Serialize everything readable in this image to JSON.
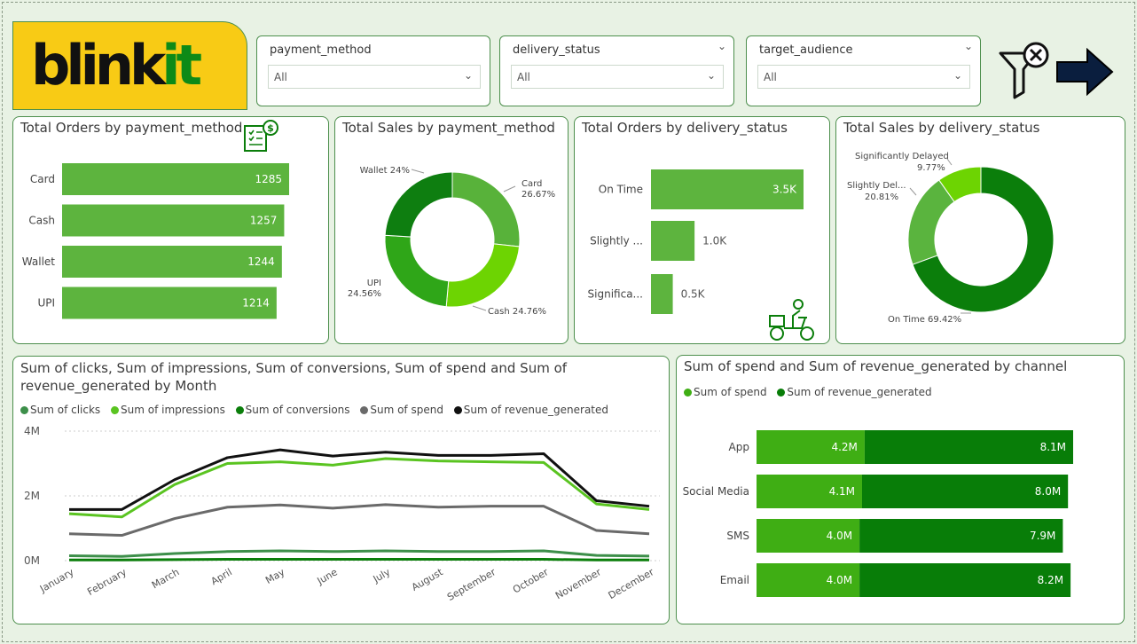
{
  "brand": {
    "logo_main": "blink",
    "logo_accent": "it"
  },
  "slicers": [
    {
      "label": "payment_method",
      "value": "All",
      "has_header_chevron": false
    },
    {
      "label": "delivery_status",
      "value": "All",
      "has_header_chevron": true
    },
    {
      "label": "target_audience",
      "value": "All",
      "has_header_chevron": true
    }
  ],
  "colors": {
    "green1": "#5db43e",
    "green2": "#0b7e0b",
    "green3": "#6dd402",
    "green4": "#2fa618",
    "grey": "#646464",
    "black": "#111111",
    "cash": "#6dd402",
    "card": "#58b23a"
  },
  "icons": {
    "clear_filters": "filter-clear-icon",
    "next_page": "arrow-right-icon",
    "invoice": "invoice-dollar-icon",
    "delivery": "delivery-scooter-icon"
  },
  "chart_data": [
    {
      "type": "bar",
      "title": "Total Orders by payment_method",
      "categories": [
        "Card",
        "Cash",
        "Wallet",
        "UPI"
      ],
      "values": [
        1285,
        1257,
        1244,
        1214
      ],
      "labels": [
        "1285",
        "1257",
        "1244",
        "1214"
      ]
    },
    {
      "type": "pie",
      "title": "Total Sales by payment_method",
      "categories": [
        "Card",
        "Cash",
        "UPI",
        "Wallet"
      ],
      "values": [
        26.67,
        24.76,
        24.56,
        24.0
      ],
      "labels": [
        "Card\n26.67%",
        "Cash 24.76%",
        "UPI\n24.56%",
        "Wallet 24%"
      ]
    },
    {
      "type": "bar",
      "title": "Total Orders by delivery_status",
      "categories": [
        "On Time",
        "Slightly ...",
        "Significa..."
      ],
      "values": [
        3.5,
        1.0,
        0.5
      ],
      "labels": [
        "3.5K",
        "1.0K",
        "0.5K"
      ]
    },
    {
      "type": "pie",
      "title": "Total Sales by delivery_status",
      "categories": [
        "On Time",
        "Slightly Del...",
        "Significantly Delayed"
      ],
      "values": [
        69.42,
        20.81,
        9.77
      ],
      "labels": [
        "On Time 69.42%",
        "20.81%",
        "9.77%"
      ]
    },
    {
      "type": "line",
      "title": "Sum of clicks, Sum of impressions, Sum of conversions, Sum of spend and Sum of revenue_generated by Month",
      "x": [
        "January",
        "February",
        "March",
        "April",
        "May",
        "June",
        "July",
        "August",
        "September",
        "October",
        "November",
        "December"
      ],
      "yticks": [
        "4M",
        "2M",
        "0M"
      ],
      "ylim": [
        0,
        4
      ],
      "series": [
        {
          "name": "Sum of clicks",
          "values": [
            0.15,
            0.13,
            0.22,
            0.28,
            0.3,
            0.28,
            0.3,
            0.28,
            0.28,
            0.3,
            0.16,
            0.14
          ]
        },
        {
          "name": "Sum of impressions",
          "values": [
            1.45,
            1.35,
            2.35,
            3.0,
            3.05,
            2.95,
            3.15,
            3.08,
            3.05,
            3.03,
            1.75,
            1.58
          ]
        },
        {
          "name": "Sum of conversions",
          "values": [
            0.02,
            0.02,
            0.03,
            0.04,
            0.04,
            0.04,
            0.04,
            0.04,
            0.04,
            0.04,
            0.02,
            0.02
          ]
        },
        {
          "name": "Sum of spend",
          "values": [
            0.83,
            0.78,
            1.3,
            1.65,
            1.72,
            1.62,
            1.73,
            1.65,
            1.68,
            1.68,
            0.93,
            0.83
          ]
        },
        {
          "name": "Sum of revenue_generated",
          "values": [
            1.58,
            1.58,
            2.5,
            3.18,
            3.42,
            3.23,
            3.35,
            3.25,
            3.25,
            3.3,
            1.85,
            1.68
          ]
        }
      ]
    },
    {
      "type": "bar",
      "title": "Sum of spend and Sum of revenue_generated by channel",
      "categories": [
        "App",
        "Social Media",
        "SMS",
        "Email"
      ],
      "series": [
        {
          "name": "Sum of spend",
          "values": [
            4.2,
            4.1,
            4.0,
            4.0
          ],
          "labels": [
            "4.2M",
            "4.1M",
            "4.0M",
            "4.0M"
          ]
        },
        {
          "name": "Sum of revenue_generated",
          "values": [
            8.1,
            8.0,
            7.9,
            8.2
          ],
          "labels": [
            "8.1M",
            "8.0M",
            "7.9M",
            "8.2M"
          ]
        }
      ]
    }
  ]
}
